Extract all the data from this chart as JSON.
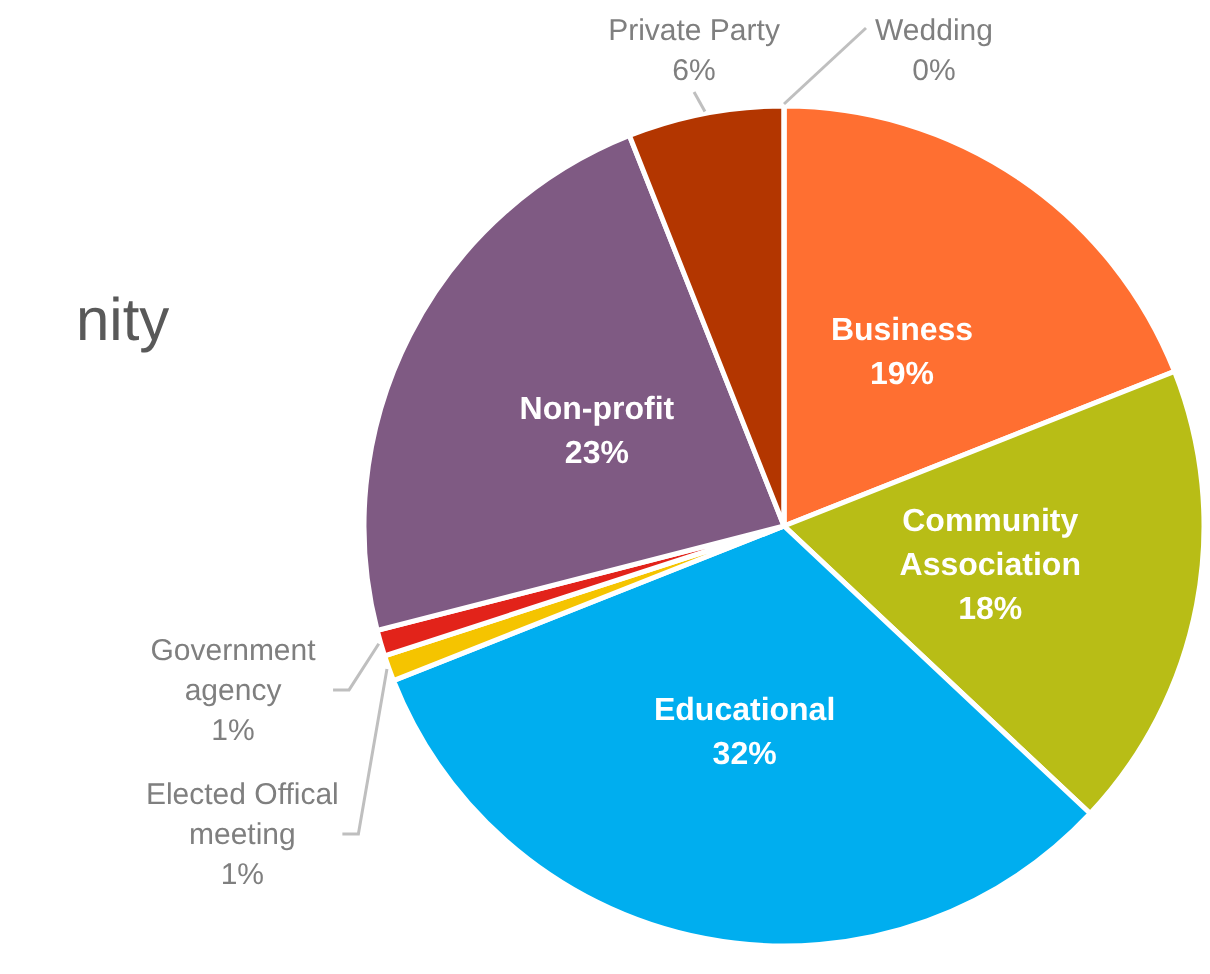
{
  "chart_data": {
    "type": "pie",
    "title": "nity",
    "categories": [
      "Business",
      "Community Association",
      "Educational",
      "Elected Offical meeting",
      "Government agency",
      "Non-profit",
      "Private Party",
      "Wedding"
    ],
    "values": [
      19,
      18,
      32,
      1,
      1,
      23,
      6,
      0
    ],
    "value_labels": [
      "19%",
      "18%",
      "32%",
      "1%",
      "1%",
      "23%",
      "6%",
      "0%"
    ],
    "colors": [
      "#ff6f31",
      "#b8bd16",
      "#00aeef",
      "#f5c400",
      "#e2231a",
      "#7f5a83",
      "#b33600",
      "#f4a582"
    ]
  }
}
